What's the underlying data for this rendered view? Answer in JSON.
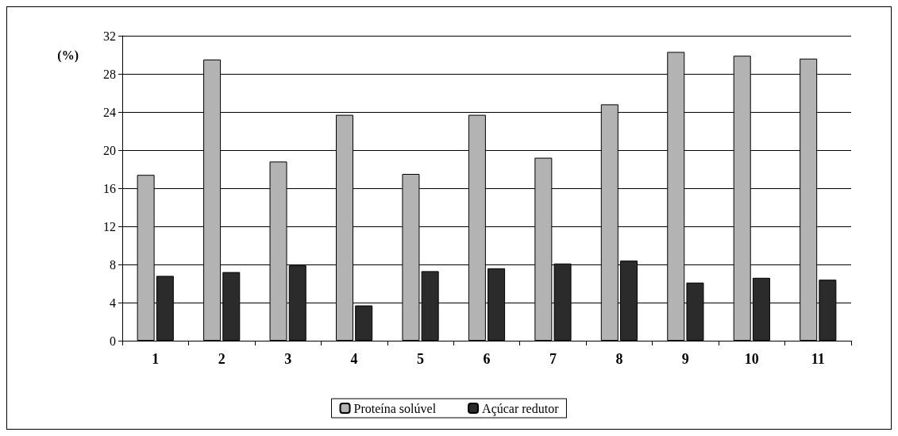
{
  "chart_data": {
    "type": "bar",
    "ylabel": "(%)",
    "categories": [
      "1",
      "2",
      "3",
      "4",
      "5",
      "6",
      "7",
      "8",
      "9",
      "10",
      "11"
    ],
    "series": [
      {
        "name": "Proteína solúvel",
        "color": "#b3b3b3",
        "values": [
          17.4,
          29.5,
          18.8,
          23.7,
          17.5,
          23.7,
          19.2,
          24.8,
          30.3,
          29.9,
          29.6
        ]
      },
      {
        "name": "Açúcar redutor",
        "color": "#2b2b2b",
        "values": [
          6.8,
          7.2,
          7.9,
          3.7,
          7.3,
          7.6,
          8.1,
          8.4,
          6.1,
          6.6,
          6.4
        ]
      }
    ],
    "ylim": [
      0,
      32
    ],
    "yticks": [
      0,
      4,
      8,
      12,
      16,
      20,
      24,
      28,
      32
    ],
    "grid": "y",
    "legend": "bottom"
  }
}
